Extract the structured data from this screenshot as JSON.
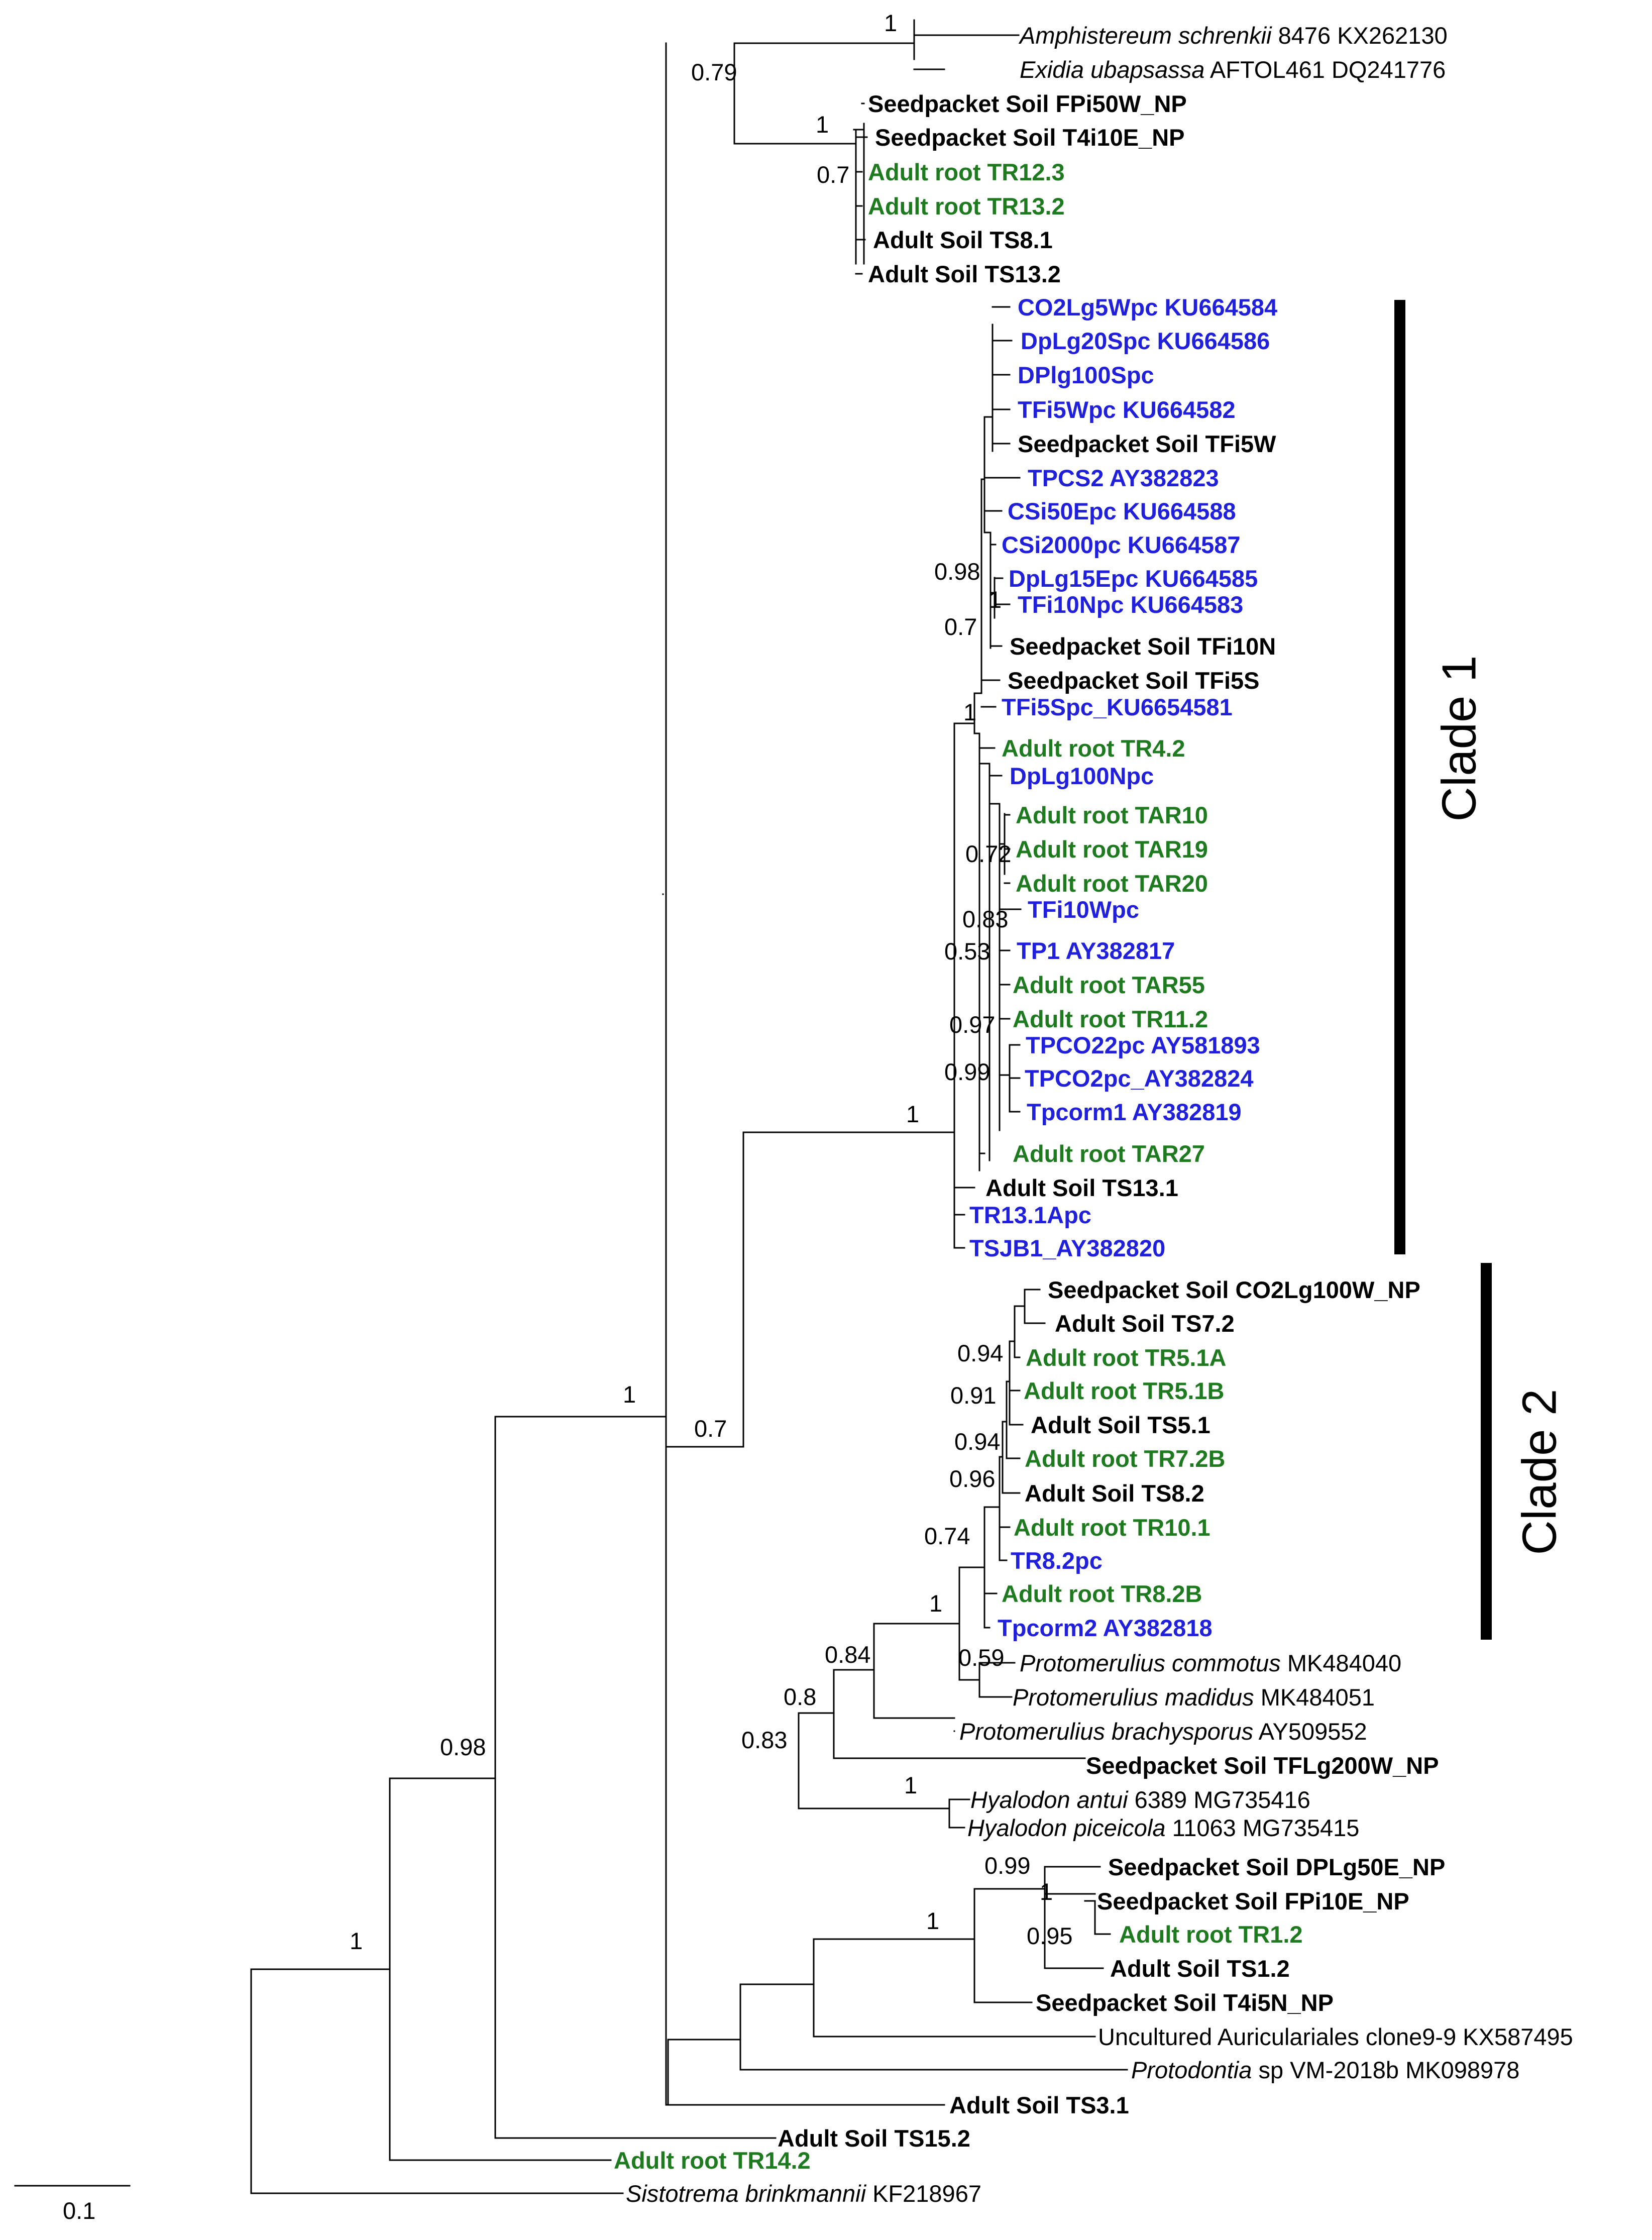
{
  "colors": {
    "black": "#000000",
    "green": "#1e7a1e",
    "blue": "#1f1fdc"
  },
  "tree": {
    "tips": {
      "amphistereum": {
        "name": "Amphistereum schrenkii",
        "acc": " 8476 KX262130",
        "color": "black",
        "italic": true
      },
      "exidia": {
        "name": "Exidia ubapsassa",
        "acc": " AFTOL461 DQ241776",
        "color": "black",
        "italic": true
      },
      "sp_fpi50w": {
        "name": "Seedpacket Soil FPi50W_NP",
        "color": "black"
      },
      "sp_t4i10e": {
        "name": "Seedpacket Soil T4i10E_NP",
        "color": "black"
      },
      "ar_tr12_3": {
        "name": "Adult root TR12.3",
        "color": "green"
      },
      "ar_tr13_2": {
        "name": "Adult root TR13.2",
        "color": "green"
      },
      "as_ts8_1": {
        "name": "Adult Soil TS8.1",
        "color": "black"
      },
      "as_ts13_2": {
        "name": "Adult Soil TS13.2",
        "color": "black"
      },
      "co2lg5wpc": {
        "name": "CO2Lg5Wpc KU664584",
        "color": "blue"
      },
      "dplg20spc": {
        "name": "DpLg20Spc KU664586",
        "color": "blue"
      },
      "dplg100spc": {
        "name": "DPlg100Spc",
        "color": "blue"
      },
      "tfi5wpc": {
        "name": "TFi5Wpc KU664582",
        "color": "blue"
      },
      "sp_tfi5w": {
        "name": "Seedpacket Soil TFi5W",
        "color": "black"
      },
      "tpcs2": {
        "name": "TPCS2 AY382823",
        "color": "blue"
      },
      "csi50epc": {
        "name": "CSi50Epc KU664588",
        "color": "blue"
      },
      "csi2000pc": {
        "name": "CSi2000pc KU664587",
        "color": "blue"
      },
      "dplg15epc": {
        "name": "DpLg15Epc KU664585",
        "color": "blue"
      },
      "tfi10npc": {
        "name": "TFi10Npc KU664583",
        "color": "blue"
      },
      "sp_tfi10n": {
        "name": "Seedpacket Soil TFi10N",
        "color": "black"
      },
      "sp_tfi5s": {
        "name": "Seedpacket Soil TFi5S",
        "color": "black"
      },
      "tfi5spc": {
        "name": "TFi5Spc_KU6654581",
        "color": "blue"
      },
      "ar_tr4_2": {
        "name": "Adult root TR4.2",
        "color": "green"
      },
      "dplg100npc": {
        "name": "DpLg100Npc",
        "color": "blue"
      },
      "ar_tar10": {
        "name": "Adult root TAR10",
        "color": "green"
      },
      "ar_tar19": {
        "name": "Adult root TAR19",
        "color": "green"
      },
      "ar_tar20": {
        "name": "Adult root TAR20",
        "color": "green"
      },
      "tfi10wpc": {
        "name": "TFi10Wpc",
        "color": "blue"
      },
      "tp1": {
        "name": "TP1 AY382817",
        "color": "blue"
      },
      "ar_tar55": {
        "name": "Adult root TAR55",
        "color": "green"
      },
      "ar_tr11_2": {
        "name": "Adult root TR11.2",
        "color": "green"
      },
      "tpco22pc": {
        "name": "TPCO22pc AY581893",
        "color": "blue"
      },
      "tpco2pc": {
        "name": "TPCO2pc_AY382824",
        "color": "blue"
      },
      "tpcorm1": {
        "name": "Tpcorm1 AY382819",
        "color": "blue"
      },
      "ar_tar27": {
        "name": "Adult root TAR27",
        "color": "green"
      },
      "as_ts13_1": {
        "name": "Adult Soil TS13.1",
        "color": "black"
      },
      "tr13_1apc": {
        "name": "TR13.1Apc",
        "color": "blue"
      },
      "tsjb1": {
        "name": "TSJB1_AY382820",
        "color": "blue"
      },
      "sp_co2lg100w": {
        "name": "Seedpacket Soil CO2Lg100W_NP",
        "color": "black"
      },
      "as_ts7_2": {
        "name": "Adult Soil TS7.2",
        "color": "black"
      },
      "ar_tr5_1a": {
        "name": "Adult root TR5.1A",
        "color": "green"
      },
      "ar_tr5_1b": {
        "name": "Adult root TR5.1B",
        "color": "green"
      },
      "as_ts5_1": {
        "name": "Adult Soil TS5.1",
        "color": "black"
      },
      "ar_tr7_2b": {
        "name": "Adult root TR7.2B",
        "color": "green"
      },
      "as_ts8_2": {
        "name": "Adult Soil TS8.2",
        "color": "black"
      },
      "ar_tr10_1": {
        "name": "Adult root TR10.1",
        "color": "green"
      },
      "tr8_2pc": {
        "name": "TR8.2pc",
        "color": "blue"
      },
      "ar_tr8_2b": {
        "name": "Adult root TR8.2B",
        "color": "green"
      },
      "tpcorm2": {
        "name": "Tpcorm2 AY382818",
        "color": "blue"
      },
      "pcommotus": {
        "name": "Protomerulius commotus",
        "acc": " MK484040",
        "color": "black",
        "italic": true
      },
      "pmadidus": {
        "name": "Protomerulius madidus",
        "acc": " MK484051",
        "color": "black",
        "italic": true
      },
      "pbrachy": {
        "name": "Protomerulius brachysporus",
        "acc": " AY509552",
        "color": "black",
        "italic": true
      },
      "sp_tflg200w": {
        "name": "Seedpacket Soil TFLg200W_NP",
        "color": "black"
      },
      "hantui": {
        "name": "Hyalodon antui",
        "acc": " 6389 MG735416",
        "color": "black",
        "italic": true
      },
      "hpiceicola": {
        "name": "Hyalodon piceicola",
        "acc": " 11063 MG735415",
        "color": "black",
        "italic": true
      },
      "sp_dplg50e": {
        "name": "Seedpacket Soil DPLg50E_NP",
        "color": "black"
      },
      "sp_fpi10e": {
        "name": "Seedpacket Soil FPi10E_NP",
        "color": "black"
      },
      "ar_tr1_2": {
        "name": "Adult root TR1.2",
        "color": "green"
      },
      "as_ts1_2": {
        "name": "Adult Soil TS1.2",
        "color": "black"
      },
      "sp_t4i5n": {
        "name": "Seedpacket Soil T4i5N_NP",
        "color": "black"
      },
      "uncult": {
        "name": "Uncultured Auriculariales clone9-9 KX587495",
        "color": "black",
        "plain": true
      },
      "protodontia": {
        "name": "Protodontia",
        "acc": " sp VM-2018b MK098978",
        "color": "black",
        "italic": true
      },
      "as_ts3_1": {
        "name": "Adult Soil TS3.1",
        "color": "black"
      },
      "as_ts15_2": {
        "name": "Adult Soil TS15.2",
        "color": "black"
      },
      "ar_tr14_2": {
        "name": "Adult root TR14.2",
        "color": "green"
      },
      "sistotrema": {
        "name": "Sistotrema brinkmannii",
        "acc": " KF218967",
        "color": "black",
        "italic": true
      }
    },
    "supports": {
      "s1": "1",
      "s2": "0.79",
      "s3": "1",
      "s4": "0.7",
      "s5": "0.98",
      "s6": "1",
      "s7": "0.7",
      "s8": "1",
      "s9": "0.72",
      "s10": "0.83",
      "s11": "0.53",
      "s12": "0.97",
      "s13": "0.99",
      "s14": "1",
      "s15": "1",
      "s16": "0.7",
      "s17": "0.94",
      "s18": "0.91",
      "s19": "0.94",
      "s20": "0.96",
      "s21": "0.74",
      "s22": "1",
      "s23": "0.84",
      "s24": "0.59",
      "s25": "0.8",
      "s26": "0.83",
      "s27": "1",
      "s28": "0.99",
      "s29": "1",
      "s30": "0.95",
      "s31": "1",
      "s32": "0.98",
      "s33": "1"
    },
    "clades": {
      "clade1": "Clade 1",
      "clade2": "Clade 2"
    },
    "scale": {
      "value": 0.1,
      "label": "0.1"
    }
  }
}
